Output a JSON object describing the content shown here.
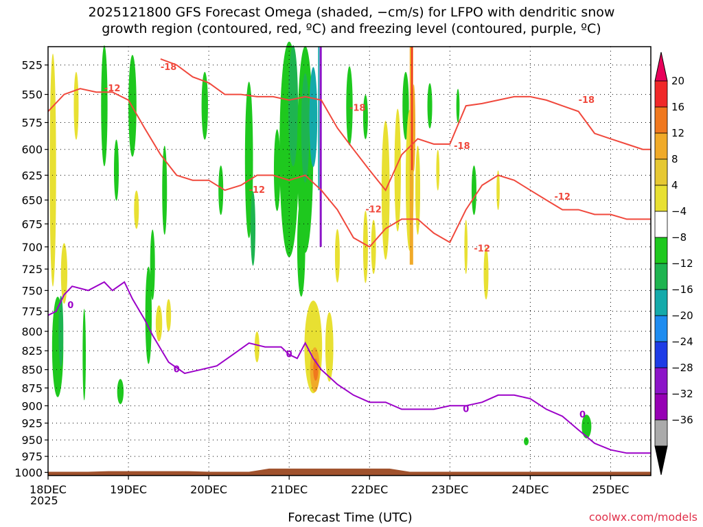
{
  "title_line1": "2025121800 GFS Forecast Omega (shaded, −cm/s) for LFPO with dendritic snow",
  "title_line2": "growth region (contoured, red, ºC) and freezing level (contoured, purple, ºC)",
  "xlabel": "Forecast Time (UTC)",
  "credit": "coolwx.com/models",
  "year_label": "2025",
  "colors": {
    "freezing_line": "#9b00c8",
    "dgz_line": "#f0483c",
    "terrain": "#a0522d",
    "credit": "#e0304a"
  },
  "chart_data": {
    "type": "heatmap",
    "x_ticks": [
      "18DEC",
      "19DEC",
      "20DEC",
      "21DEC",
      "22DEC",
      "23DEC",
      "24DEC",
      "25DEC"
    ],
    "x_days_range": [
      0,
      7.5
    ],
    "y_ticks": [
      525,
      550,
      575,
      600,
      625,
      650,
      675,
      700,
      725,
      750,
      775,
      800,
      825,
      850,
      875,
      900,
      925,
      950,
      975,
      1000
    ],
    "y_range_hpa": [
      510,
      1005
    ],
    "y_scale": "log-pressure",
    "colorbar": {
      "labels": [
        "20",
        "16",
        "12",
        "8",
        "4",
        "−4",
        "−8",
        "−12",
        "−16",
        "−20",
        "−24",
        "−28",
        "−32",
        "−36"
      ],
      "colors": [
        "#e8005a",
        "#f02828",
        "#f0781e",
        "#f0aa28",
        "#e6c832",
        "#e8e032",
        "#ffffff",
        "#1ec81e",
        "#1eb450",
        "#14aaaa",
        "#1e8cf0",
        "#1e3ce6",
        "#8c14c8",
        "#9600b4",
        "#aaaaaa",
        "#000000"
      ]
    },
    "contour_labels": [
      "-18",
      "-12",
      "-18",
      "-12",
      "-12",
      "-18",
      "-12",
      "-18",
      "-12",
      "0",
      "0",
      "0",
      "0",
      "0"
    ],
    "freezing_level": {
      "label": "0",
      "days": [
        0,
        0.1,
        0.2,
        0.3,
        0.5,
        0.7,
        0.8,
        0.95,
        1.05,
        1.2,
        1.3,
        1.5,
        1.7,
        1.9,
        2.1,
        2.3,
        2.5,
        2.7,
        2.9,
        3.0,
        3.1,
        3.2,
        3.3,
        3.4,
        3.5,
        3.6,
        3.8,
        4.0,
        4.2,
        4.4,
        4.6,
        4.8,
        5.0,
        5.2,
        5.4,
        5.6,
        5.8,
        6.0,
        6.2,
        6.4,
        6.6,
        6.8,
        7.0,
        7.2,
        7.4,
        7.5
      ],
      "hpa": [
        780,
        775,
        755,
        745,
        750,
        740,
        750,
        740,
        760,
        785,
        805,
        840,
        855,
        850,
        845,
        830,
        815,
        820,
        820,
        830,
        835,
        815,
        835,
        850,
        860,
        870,
        885,
        895,
        895,
        905,
        905,
        905,
        900,
        900,
        895,
        885,
        885,
        890,
        905,
        915,
        935,
        955,
        965,
        970,
        970,
        970
      ]
    },
    "dgz_minus12_upper": {
      "label": "-12",
      "days": [
        0,
        0.2,
        0.4,
        0.6,
        0.8,
        1.0,
        1.2,
        1.4,
        1.6,
        1.8,
        2.0,
        2.2,
        2.4,
        2.6,
        2.8,
        3.0,
        3.2,
        3.4,
        3.6,
        3.8,
        4.0,
        4.2,
        4.4,
        4.6,
        4.8,
        5.0,
        5.2,
        5.4,
        5.6,
        5.8,
        6.0,
        6.2,
        6.4,
        6.6,
        6.8,
        7.0,
        7.2,
        7.4,
        7.5
      ],
      "hpa": [
        565,
        550,
        545,
        548,
        548,
        555,
        580,
        605,
        625,
        630,
        630,
        640,
        635,
        625,
        625,
        630,
        625,
        640,
        660,
        690,
        700,
        680,
        670,
        670,
        685,
        695,
        660,
        635,
        625,
        630,
        640,
        650,
        660,
        660,
        665,
        665,
        670,
        670,
        670
      ]
    },
    "dgz_minus18": {
      "label": "-18",
      "days": [
        1.4,
        1.6,
        1.8,
        2.0,
        2.2,
        2.4,
        2.6,
        2.8,
        3.0,
        3.2,
        3.4,
        3.6,
        3.8,
        4.0,
        4.2,
        4.4,
        4.6,
        4.8,
        5.0,
        5.2,
        5.4,
        5.6,
        5.8,
        6.0,
        6.2,
        6.4,
        6.6,
        6.8,
        7.0,
        7.2,
        7.4,
        7.5
      ],
      "hpa": [
        520,
        525,
        535,
        540,
        550,
        550,
        552,
        552,
        555,
        552,
        555,
        580,
        600,
        620,
        640,
        605,
        590,
        595,
        595,
        560,
        558,
        555,
        552,
        552,
        555,
        560,
        565,
        585,
        590,
        595,
        600,
        600
      ]
    }
  }
}
